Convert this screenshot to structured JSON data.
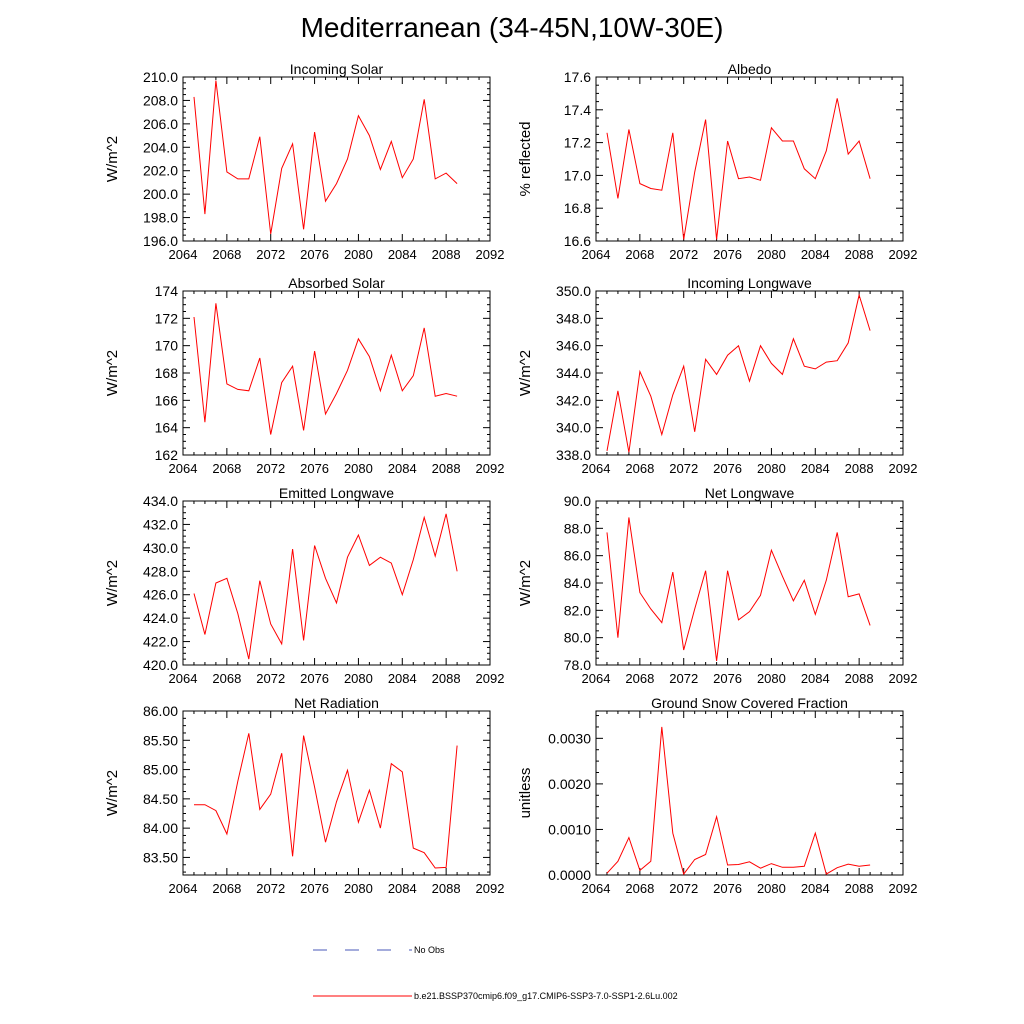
{
  "title": "Mediterranean (34-45N,10W-30E)",
  "legend": {
    "items": [
      {
        "label": "No Obs",
        "color": "#4a5ab8",
        "style": "dashed"
      },
      {
        "label": "b.e21.BSSP370cmip6.f09_g17.CMIP6-SSP3-7.0-SSP1-2.6Lu.002",
        "color": "#ff0000",
        "style": "solid"
      }
    ]
  },
  "series_color": "#ff0000",
  "chart_data": [
    {
      "id": "incoming-solar",
      "type": "line",
      "title": "Incoming Solar",
      "ylabel": "W/m^2",
      "xlim": [
        2064,
        2092
      ],
      "xticks": [
        2064,
        2068,
        2072,
        2076,
        2080,
        2084,
        2088,
        2092
      ],
      "ylim": [
        196,
        210
      ],
      "yticks": [
        196.0,
        198.0,
        200.0,
        202.0,
        204.0,
        206.0,
        208.0,
        210.0
      ],
      "ydec": 1,
      "x": [
        2065,
        2066,
        2067,
        2068,
        2069,
        2070,
        2071,
        2072,
        2073,
        2074,
        2075,
        2076,
        2077,
        2078,
        2079,
        2080,
        2081,
        2082,
        2083,
        2084,
        2085,
        2086,
        2087,
        2088,
        2089
      ],
      "values": [
        208.3,
        198.3,
        209.7,
        201.9,
        201.3,
        201.3,
        204.9,
        196.6,
        202.2,
        204.3,
        197.0,
        205.3,
        199.4,
        200.9,
        203.0,
        206.7,
        205.0,
        202.1,
        204.5,
        201.4,
        203.0,
        208.1,
        201.3,
        201.8,
        200.9
      ]
    },
    {
      "id": "albedo",
      "type": "line",
      "title": "Albedo",
      "ylabel": "% reflected",
      "xlim": [
        2064,
        2092
      ],
      "xticks": [
        2064,
        2068,
        2072,
        2076,
        2080,
        2084,
        2088,
        2092
      ],
      "ylim": [
        16.6,
        17.6
      ],
      "yticks": [
        16.6,
        16.8,
        17.0,
        17.2,
        17.4,
        17.6
      ],
      "ydec": 1,
      "x": [
        2065,
        2066,
        2067,
        2068,
        2069,
        2070,
        2071,
        2072,
        2073,
        2074,
        2075,
        2076,
        2077,
        2078,
        2079,
        2080,
        2081,
        2082,
        2083,
        2084,
        2085,
        2086,
        2087,
        2088,
        2089
      ],
      "values": [
        17.26,
        16.86,
        17.28,
        16.95,
        16.92,
        16.91,
        17.26,
        16.61,
        17.02,
        17.34,
        16.61,
        17.21,
        16.98,
        16.99,
        16.97,
        17.29,
        17.21,
        17.21,
        17.04,
        16.98,
        17.15,
        17.47,
        17.13,
        17.21,
        16.98
      ]
    },
    {
      "id": "absorbed-solar",
      "type": "line",
      "title": "Absorbed Solar",
      "ylabel": "W/m^2",
      "xlim": [
        2064,
        2092
      ],
      "xticks": [
        2064,
        2068,
        2072,
        2076,
        2080,
        2084,
        2088,
        2092
      ],
      "ylim": [
        162,
        174
      ],
      "yticks": [
        162,
        164,
        166,
        168,
        170,
        172,
        174
      ],
      "ydec": 0,
      "x": [
        2065,
        2066,
        2067,
        2068,
        2069,
        2070,
        2071,
        2072,
        2073,
        2074,
        2075,
        2076,
        2077,
        2078,
        2079,
        2080,
        2081,
        2082,
        2083,
        2084,
        2085,
        2086,
        2087,
        2088,
        2089
      ],
      "values": [
        172.1,
        164.4,
        173.1,
        167.2,
        166.8,
        166.7,
        169.1,
        163.5,
        167.3,
        168.5,
        163.8,
        169.6,
        165.0,
        166.5,
        168.2,
        170.5,
        169.2,
        166.7,
        169.3,
        166.7,
        167.8,
        171.3,
        166.3,
        166.5,
        166.3
      ]
    },
    {
      "id": "incoming-longwave",
      "type": "line",
      "title": "Incoming Longwave",
      "ylabel": "W/m^2",
      "xlim": [
        2064,
        2092
      ],
      "xticks": [
        2064,
        2068,
        2072,
        2076,
        2080,
        2084,
        2088,
        2092
      ],
      "ylim": [
        338,
        350
      ],
      "yticks": [
        338.0,
        340.0,
        342.0,
        344.0,
        346.0,
        348.0,
        350.0
      ],
      "ydec": 1,
      "x": [
        2065,
        2066,
        2067,
        2068,
        2069,
        2070,
        2071,
        2072,
        2073,
        2074,
        2075,
        2076,
        2077,
        2078,
        2079,
        2080,
        2081,
        2082,
        2083,
        2084,
        2085,
        2086,
        2087,
        2088,
        2089
      ],
      "values": [
        338.3,
        342.7,
        338.2,
        344.1,
        342.3,
        339.5,
        342.4,
        344.5,
        339.7,
        345.0,
        343.9,
        345.3,
        346.0,
        343.4,
        346.0,
        344.7,
        343.9,
        346.5,
        344.5,
        344.3,
        344.8,
        344.9,
        346.2,
        349.7,
        347.1
      ]
    },
    {
      "id": "emitted-longwave",
      "type": "line",
      "title": "Emitted Longwave",
      "ylabel": "W/m^2",
      "xlim": [
        2064,
        2092
      ],
      "xticks": [
        2064,
        2068,
        2072,
        2076,
        2080,
        2084,
        2088,
        2092
      ],
      "ylim": [
        420,
        434
      ],
      "yticks": [
        420.0,
        422.0,
        424.0,
        426.0,
        428.0,
        430.0,
        432.0,
        434.0
      ],
      "ydec": 1,
      "x": [
        2065,
        2066,
        2067,
        2068,
        2069,
        2070,
        2071,
        2072,
        2073,
        2074,
        2075,
        2076,
        2077,
        2078,
        2079,
        2080,
        2081,
        2082,
        2083,
        2084,
        2085,
        2086,
        2087,
        2088,
        2089
      ],
      "values": [
        426.1,
        422.6,
        427.0,
        427.4,
        424.4,
        420.5,
        427.2,
        423.5,
        421.8,
        429.9,
        422.1,
        430.2,
        427.4,
        425.3,
        429.2,
        431.1,
        428.5,
        429.2,
        428.7,
        426.0,
        429.0,
        432.6,
        429.3,
        432.9,
        428.0
      ]
    },
    {
      "id": "net-longwave",
      "type": "line",
      "title": "Net Longwave",
      "ylabel": "W/m^2",
      "xlim": [
        2064,
        2092
      ],
      "xticks": [
        2064,
        2068,
        2072,
        2076,
        2080,
        2084,
        2088,
        2092
      ],
      "ylim": [
        78,
        90
      ],
      "yticks": [
        78.0,
        80.0,
        82.0,
        84.0,
        86.0,
        88.0,
        90.0
      ],
      "ydec": 1,
      "x": [
        2065,
        2066,
        2067,
        2068,
        2069,
        2070,
        2071,
        2072,
        2073,
        2074,
        2075,
        2076,
        2077,
        2078,
        2079,
        2080,
        2081,
        2082,
        2083,
        2084,
        2085,
        2086,
        2087,
        2088,
        2089
      ],
      "values": [
        87.7,
        80.0,
        88.8,
        83.3,
        82.1,
        81.1,
        84.8,
        79.1,
        82.1,
        84.9,
        78.3,
        84.9,
        81.3,
        81.9,
        83.1,
        86.4,
        84.5,
        82.7,
        84.2,
        81.7,
        84.2,
        87.7,
        83.0,
        83.2,
        80.9
      ]
    },
    {
      "id": "net-radiation",
      "type": "line",
      "title": "Net Radiation",
      "ylabel": "W/m^2",
      "xlim": [
        2064,
        2092
      ],
      "xticks": [
        2064,
        2068,
        2072,
        2076,
        2080,
        2084,
        2088,
        2092
      ],
      "ylim": [
        83.2,
        86.0
      ],
      "yticks": [
        83.5,
        84.0,
        84.5,
        85.0,
        85.5,
        86.0
      ],
      "ydec": 2,
      "x": [
        2065,
        2066,
        2067,
        2068,
        2069,
        2070,
        2071,
        2072,
        2073,
        2074,
        2075,
        2076,
        2077,
        2078,
        2079,
        2080,
        2081,
        2082,
        2083,
        2084,
        2085,
        2086,
        2087,
        2088,
        2089
      ],
      "values": [
        84.4,
        84.4,
        84.3,
        83.9,
        84.8,
        85.62,
        84.32,
        84.58,
        85.28,
        83.52,
        85.58,
        84.7,
        83.76,
        84.45,
        84.99,
        84.1,
        84.65,
        84.0,
        85.1,
        84.96,
        83.66,
        83.58,
        83.32,
        83.33,
        85.41
      ]
    },
    {
      "id": "ground-snow-covered-fraction",
      "type": "line",
      "title": "Ground Snow Covered Fraction",
      "ylabel": "unitless",
      "xlim": [
        2064,
        2092
      ],
      "xticks": [
        2064,
        2068,
        2072,
        2076,
        2080,
        2084,
        2088,
        2092
      ],
      "ylim": [
        0,
        0.0036
      ],
      "yticks": [
        0.0,
        0.001,
        0.002,
        0.003
      ],
      "ydec": 4,
      "x": [
        2065,
        2066,
        2067,
        2068,
        2069,
        2070,
        2071,
        2072,
        2073,
        2074,
        2075,
        2076,
        2077,
        2078,
        2079,
        2080,
        2081,
        2082,
        2083,
        2084,
        2085,
        2086,
        2087,
        2088,
        2089
      ],
      "values": [
        4e-05,
        0.0003,
        0.00082,
        0.0001,
        0.0003,
        0.00325,
        0.00092,
        2e-05,
        0.00034,
        0.00045,
        0.00128,
        0.00022,
        0.00023,
        0.00029,
        0.00015,
        0.00025,
        0.00017,
        0.00017,
        0.00019,
        0.00092,
        2e-05,
        0.00016,
        0.00024,
        0.00019,
        0.00022
      ]
    }
  ]
}
